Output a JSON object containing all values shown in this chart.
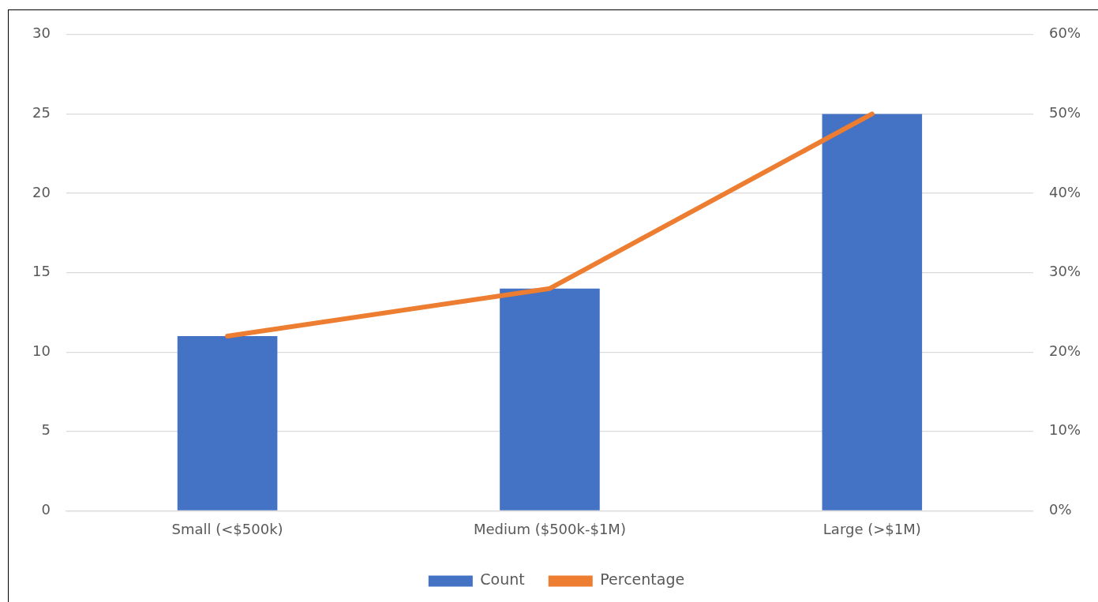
{
  "chart_data": {
    "type": "bar",
    "categories": [
      "Small (<$500k)",
      "Medium ($500k-$1M)",
      "Large (>$1M)"
    ],
    "series": [
      {
        "name": "Count",
        "color": "#4472c4",
        "values": [
          11,
          14,
          25
        ]
      },
      {
        "name": "Percentage",
        "type": "line",
        "axis": "y2",
        "color": "#ed7d31",
        "values": [
          22,
          28,
          50
        ]
      }
    ],
    "ylim": [
      0,
      30
    ],
    "yticks": [
      0,
      5,
      10,
      15,
      20,
      25,
      30
    ],
    "y2lim": [
      0,
      60
    ],
    "y2ticks": [
      {
        "value": 0,
        "label": "0%"
      },
      {
        "value": 10,
        "label": "10%"
      },
      {
        "value": 20,
        "label": "20%"
      },
      {
        "value": 30,
        "label": "30%"
      },
      {
        "value": 40,
        "label": "40%"
      },
      {
        "value": 50,
        "label": "50%"
      },
      {
        "value": 60,
        "label": "60%"
      }
    ],
    "grid": "y",
    "legend": "bottom",
    "marker": "none"
  }
}
